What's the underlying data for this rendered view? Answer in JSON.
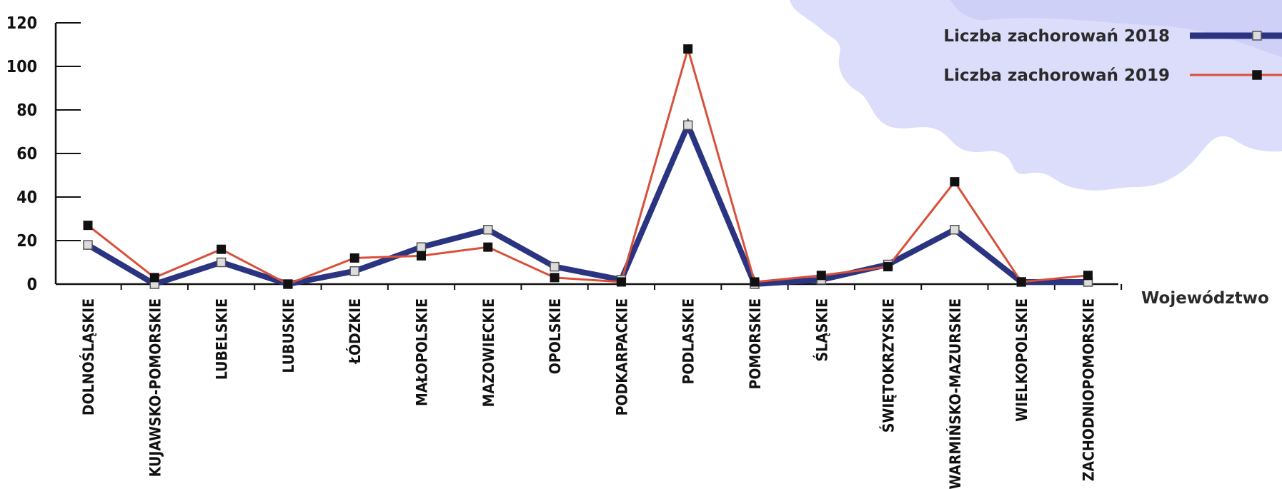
{
  "chart_data": {
    "type": "line",
    "xlabel": "Województwo",
    "ylabel": "",
    "ylim": [
      0,
      120
    ],
    "yticks": [
      "0",
      "20",
      "40",
      "60",
      "80",
      "100",
      "120"
    ],
    "legend_position": "top-right",
    "categories": [
      "DOLNOŚLĄSKIE",
      "KUJAWSKO-POMORSKIE",
      "LUBELSKIE",
      "LUBUSKIE",
      "ŁÓDZKIE",
      "MAŁOPOLSKIE",
      "MAZOWIECKIE",
      "OPOLSKIE",
      "PODKARPACKIE",
      "PODLASKIE",
      "POMORSKIE",
      "ŚLĄSKIE",
      "ŚWIĘTOKRZYSKIE",
      "WARMIŃSKO-MAZURSKIE",
      "WIELKOPOLSKIE",
      "ZACHODNIOPOMORSKIE"
    ],
    "series": [
      {
        "name": "Liczba zachorowań 2018",
        "color": "#2b3480",
        "marker": "open-square",
        "values": [
          18,
          0,
          10,
          0,
          6,
          17,
          25,
          8,
          2,
          73,
          0,
          2,
          9,
          25,
          1,
          1
        ]
      },
      {
        "name": "Liczba zachorowań 2019",
        "color": "#d9503a",
        "marker": "filled-square",
        "values": [
          27,
          3,
          16,
          0,
          12,
          13,
          17,
          3,
          1,
          108,
          1,
          4,
          8,
          47,
          1,
          4
        ]
      }
    ]
  },
  "decoration": {
    "map_color": "#d8d9fb"
  }
}
